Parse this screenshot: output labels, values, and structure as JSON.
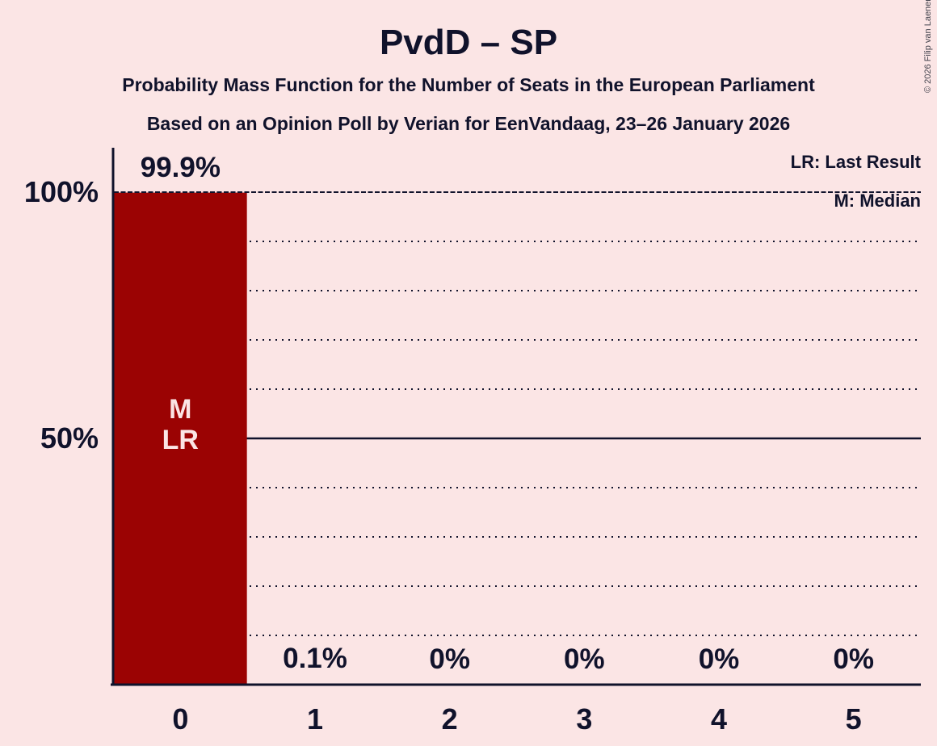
{
  "title": "PvdD – SP",
  "subtitle1": "Probability Mass Function for the Number of Seats in the European Parliament",
  "subtitle2": "Based on an Opinion Poll by Verian for EenVandaag, 23–26 January 2026",
  "copyright": "© 2026 Filip van Laenen",
  "legend": {
    "lr": "LR: Last Result",
    "m": "M: Median"
  },
  "colors": {
    "background": "#fbe5e5",
    "bar": "#9b0303",
    "text": "#10122b",
    "bar_label": "#fbe5e5"
  },
  "chart_data": {
    "type": "bar",
    "title": "PvdD – SP",
    "categories": [
      "0",
      "1",
      "2",
      "3",
      "4",
      "5"
    ],
    "values": [
      99.9,
      0.1,
      0,
      0,
      0,
      0
    ],
    "value_labels": [
      "99.9%",
      "0.1%",
      "0%",
      "0%",
      "0%",
      "0%"
    ],
    "bar_annotations": [
      [
        "M",
        "LR"
      ],
      [],
      [],
      [],
      [],
      []
    ],
    "ylim": [
      0,
      100
    ],
    "yticks": [
      {
        "value": 100,
        "label": "100%"
      },
      {
        "value": 50,
        "label": "50%"
      }
    ],
    "grid": "dotted lines every 10%, solid line at 50%, fine-dashed line at 100%",
    "legend_position": "top-right"
  }
}
